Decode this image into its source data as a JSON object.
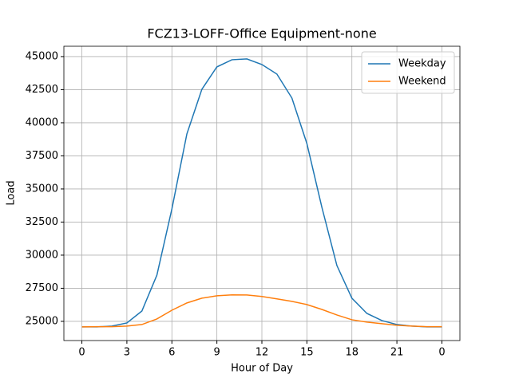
{
  "chart_data": {
    "type": "line",
    "title": "FCZ13-LOFF-Office Equipment-none",
    "x_label": "Hour of Day",
    "y_label": "Load",
    "x": [
      0,
      1,
      2,
      3,
      4,
      5,
      6,
      7,
      8,
      9,
      10,
      11,
      12,
      13,
      14,
      15,
      16,
      17,
      18,
      19,
      20,
      21,
      22,
      23,
      24
    ],
    "series": [
      {
        "name": "Weekday",
        "color": "#1f77b4",
        "values": [
          24580,
          24580,
          24640,
          24880,
          25780,
          28490,
          33490,
          39160,
          42530,
          44220,
          44760,
          44820,
          44400,
          43680,
          41870,
          38430,
          33610,
          29220,
          26750,
          25600,
          25060,
          24760,
          24640,
          24580,
          24580
        ]
      },
      {
        "name": "Weekend",
        "color": "#ff7f0e",
        "values": [
          24580,
          24600,
          24600,
          24640,
          24760,
          25180,
          25840,
          26390,
          26750,
          26930,
          27000,
          26990,
          26880,
          26700,
          26510,
          26270,
          25900,
          25480,
          25120,
          24940,
          24820,
          24700,
          24640,
          24600,
          24600
        ]
      }
    ],
    "xlim": [
      -1.2,
      25.2
    ],
    "xticks": [
      0,
      3,
      6,
      9,
      12,
      15,
      18,
      21,
      {
        "value": 24,
        "label": "0"
      }
    ],
    "ylim": [
      23550,
      45780
    ],
    "yticks": [
      25000,
      27500,
      30000,
      32500,
      35000,
      37500,
      40000,
      42500,
      45000
    ],
    "grid": true,
    "legend": "upper right"
  }
}
